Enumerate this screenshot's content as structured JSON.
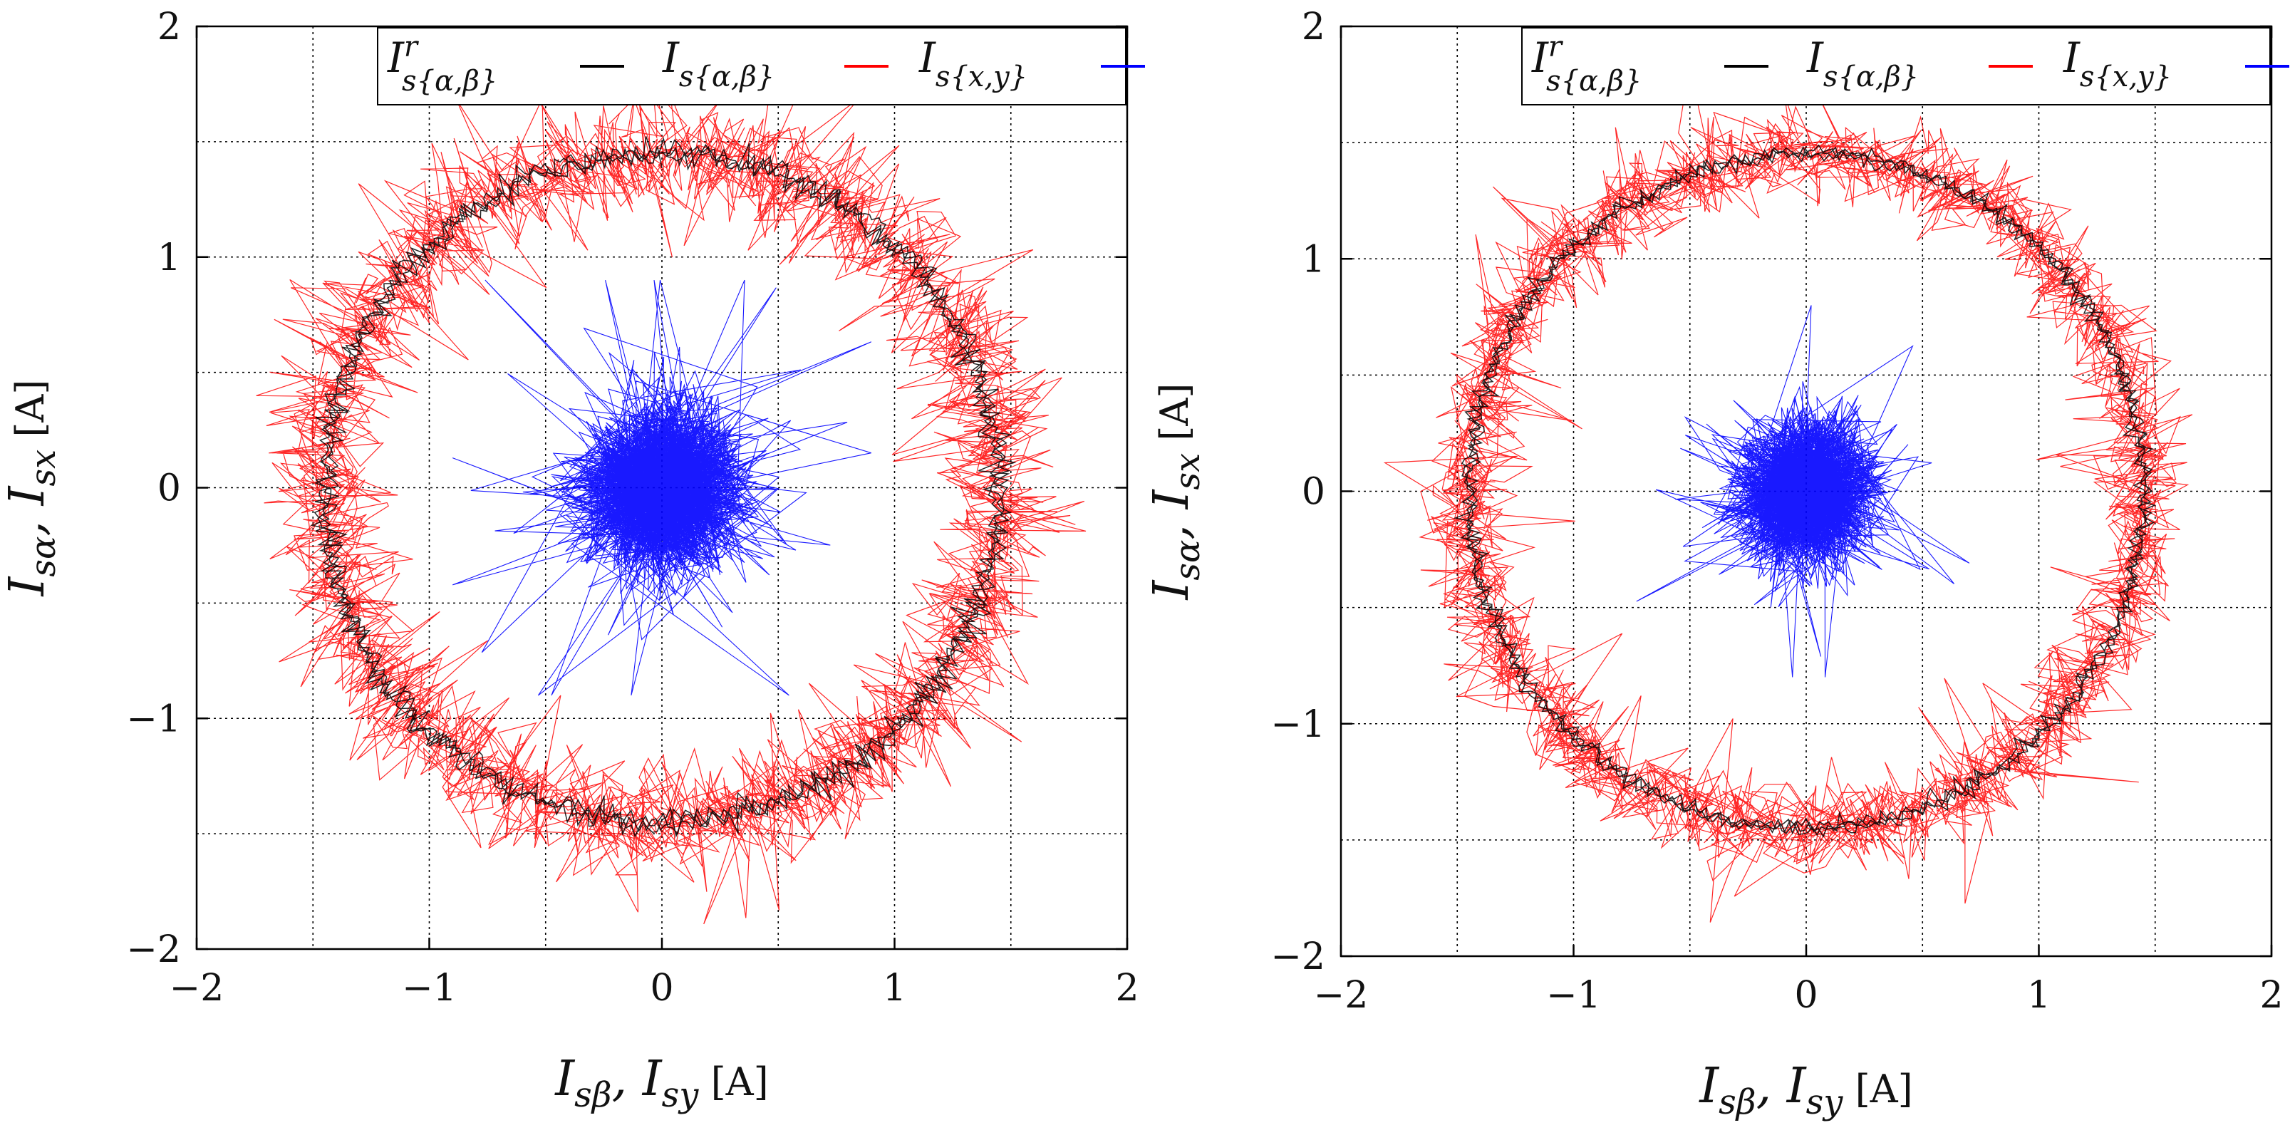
{
  "chart_data": [
    {
      "type": "line",
      "panel": "left",
      "xlabel": "I_{sβ}, I_{sy} [A]",
      "ylabel": "I_{sα}, I_{sx} [A]",
      "xlabel_main": "I",
      "xlabel_sub1": "sβ",
      "xlabel_sep": ", I",
      "xlabel_sub2": "sy",
      "xlabel_unit": "[A]",
      "ylabel_main": "I",
      "ylabel_sub1": "sα",
      "ylabel_sep": ", I",
      "ylabel_sub2": "sx",
      "ylabel_unit": "[A]",
      "xlim": [
        -2,
        2
      ],
      "ylim": [
        -2,
        2
      ],
      "xticks": [
        "−2",
        "−1",
        "0",
        "1",
        "2"
      ],
      "yticks": [
        "−2",
        "−1",
        "0",
        "1",
        "2"
      ],
      "grid": true,
      "legend_position": "top-right",
      "series": [
        {
          "name": "I^r_{s{α,β}}",
          "label_main": "I",
          "label_sup": "r",
          "label_sub": "s{α,β}",
          "color": "#000000",
          "kind": "reference circle",
          "radius": 1.45,
          "noise_std": 0.03
        },
        {
          "name": "I_{s{α,β}}",
          "label_main": "I",
          "label_sub": "s{α,β}",
          "color": "#ff0000",
          "kind": "noisy circle",
          "radius": 1.45,
          "noise_std": 0.12,
          "max_excursion": 0.45
        },
        {
          "name": "I_{s{x,y}}",
          "label_main": "I",
          "label_sub": "s{x,y}",
          "color": "#0000ff",
          "kind": "noisy cluster",
          "center": [
            0,
            0
          ],
          "noise_std": 0.18,
          "max_excursion": 0.9
        }
      ]
    },
    {
      "type": "line",
      "panel": "right",
      "xlabel": "I_{sβ}, I_{sy} [A]",
      "ylabel": "I_{sα}, I_{sx} [A]",
      "xlabel_main": "I",
      "xlabel_sub1": "sβ",
      "xlabel_sep": ", I",
      "xlabel_sub2": "sy",
      "xlabel_unit": "[A]",
      "ylabel_main": "I",
      "ylabel_sub1": "sα",
      "ylabel_sep": ", I",
      "ylabel_sub2": "sx",
      "ylabel_unit": "[A]",
      "xlim": [
        -2,
        2
      ],
      "ylim": [
        -2,
        2
      ],
      "xticks": [
        "−2",
        "−1",
        "0",
        "1",
        "2"
      ],
      "yticks": [
        "−2",
        "−1",
        "0",
        "1",
        "2"
      ],
      "grid": true,
      "legend_position": "top-right",
      "series": [
        {
          "name": "I^r_{s{α,β}}",
          "label_main": "I",
          "label_sup": "r",
          "label_sub": "s{α,β}",
          "color": "#000000",
          "kind": "reference circle",
          "radius": 1.45,
          "noise_std": 0.02
        },
        {
          "name": "I_{s{α,β}}",
          "label_main": "I",
          "label_sub": "s{α,β}",
          "color": "#ff0000",
          "kind": "noisy circle",
          "radius": 1.45,
          "noise_std": 0.09,
          "max_excursion": 0.45
        },
        {
          "name": "I_{s{x,y}}",
          "label_main": "I",
          "label_sub": "s{x,y}",
          "color": "#0000ff",
          "kind": "noisy cluster",
          "center": [
            0,
            0
          ],
          "noise_std": 0.15,
          "max_excursion": 0.8
        }
      ]
    }
  ]
}
